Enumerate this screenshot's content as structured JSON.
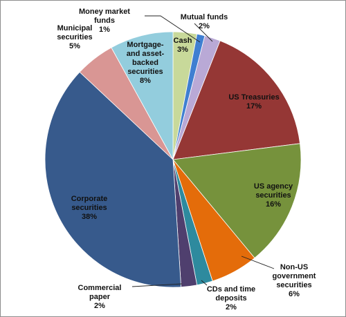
{
  "chart_data": {
    "type": "pie",
    "title": "",
    "start_angle_deg": 0,
    "direction": "clockwise",
    "slices": [
      {
        "label_lines": [
          "Cash",
          "3%"
        ],
        "value": 3,
        "color": "#c8d99a"
      },
      {
        "label_lines": [
          "Money market",
          "funds",
          "1%"
        ],
        "value": 1,
        "color": "#3f7fd1"
      },
      {
        "label_lines": [
          "Mutual funds",
          "2%"
        ],
        "value": 2,
        "color": "#b9a9d6"
      },
      {
        "label_lines": [
          "US Treasuries",
          "17%"
        ],
        "value": 17,
        "color": "#953735"
      },
      {
        "label_lines": [
          "US agency",
          "securities",
          "16%"
        ],
        "value": 16,
        "color": "#76923c"
      },
      {
        "label_lines": [
          "Non-US",
          "government",
          "securities",
          "6%"
        ],
        "value": 6,
        "color": "#e46c0a"
      },
      {
        "label_lines": [
          "CDs and time",
          "deposits",
          "2%"
        ],
        "value": 2,
        "color": "#2e8a9e"
      },
      {
        "label_lines": [
          "Commercial",
          "paper",
          "2%"
        ],
        "value": 2,
        "color": "#4f3f6e"
      },
      {
        "label_lines": [
          "Corporate",
          "securities",
          "38%"
        ],
        "value": 38,
        "color": "#375a8c"
      },
      {
        "label_lines": [
          "Municipal",
          "securities",
          "5%"
        ],
        "value": 5,
        "color": "#d99694"
      },
      {
        "label_lines": [
          "Mortgage-",
          "and asset-",
          "backed",
          "securities",
          "8%"
        ],
        "value": 8,
        "color": "#93cddd"
      }
    ]
  }
}
